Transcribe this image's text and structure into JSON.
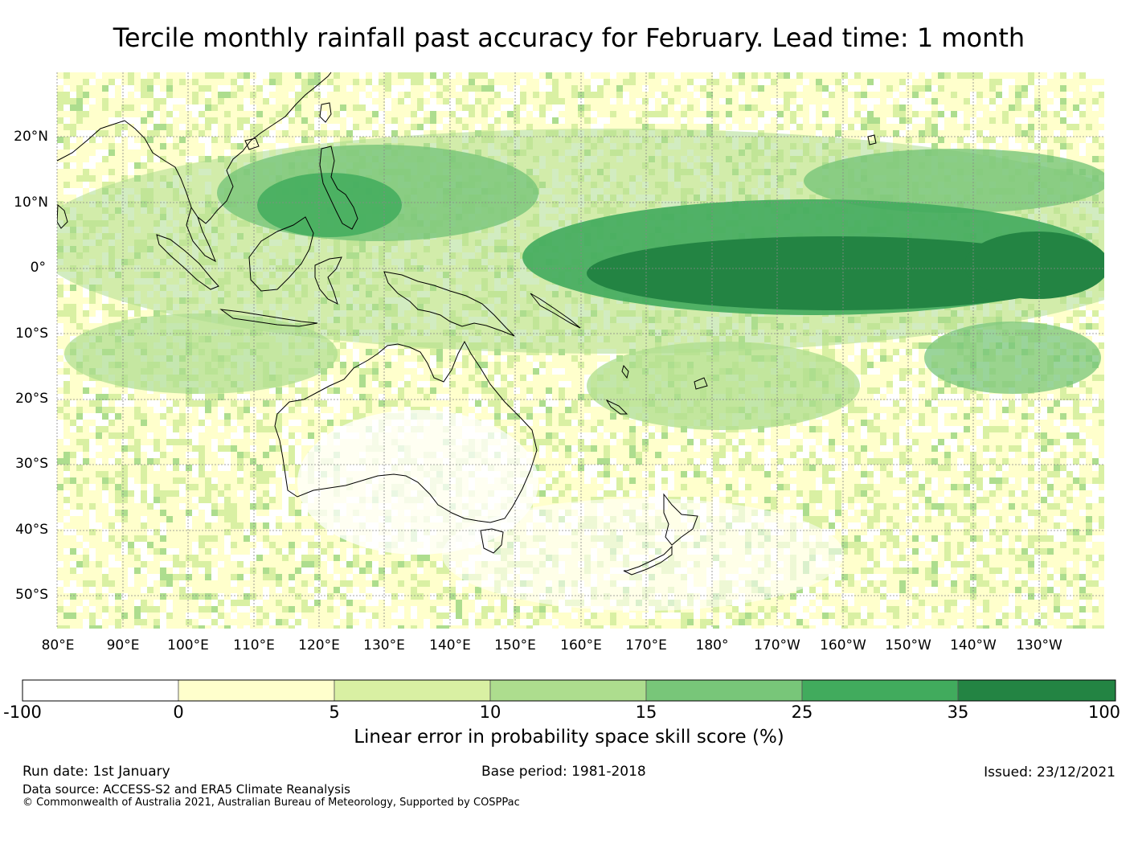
{
  "title": "Tercile monthly rainfall past accuracy for February. Lead time: 1 month",
  "map": {
    "lat_labels": [
      "20°N",
      "10°N",
      "0°",
      "10°S",
      "20°S",
      "30°S",
      "40°S",
      "50°S"
    ],
    "lon_labels": [
      "80°E",
      "90°E",
      "100°E",
      "110°E",
      "120°E",
      "130°E",
      "140°E",
      "150°E",
      "160°E",
      "170°E",
      "180°",
      "170°W",
      "160°W",
      "150°W",
      "140°W",
      "130°W"
    ],
    "extent": {
      "lon_min": 80,
      "lon_max": 240,
      "lat_min": -55,
      "lat_max": 30
    },
    "colors": {
      "land_coast": "#000000",
      "grid": "#888888",
      "background": "#ffffff"
    }
  },
  "colorbar": {
    "title": "Linear error in probability space skill score (%)",
    "ticks": [
      "-100",
      "0",
      "5",
      "10",
      "15",
      "25",
      "35",
      "100"
    ],
    "colors": [
      "#ffffff",
      "#ffffcc",
      "#d9f0a3",
      "#addd8e",
      "#78c679",
      "#41ab5d",
      "#238443"
    ]
  },
  "footer": {
    "run_date": "Run date: 1st January",
    "base_period": "Base period: 1981-2018",
    "issued": "Issued: 23/12/2021",
    "data_source": "Data source: ACCESS-S2 and ERA5 Climate Reanalysis",
    "copyright": "© Commonwealth of Australia 2021, Australian Bureau of Meteorology, Supported by COSPPac"
  }
}
